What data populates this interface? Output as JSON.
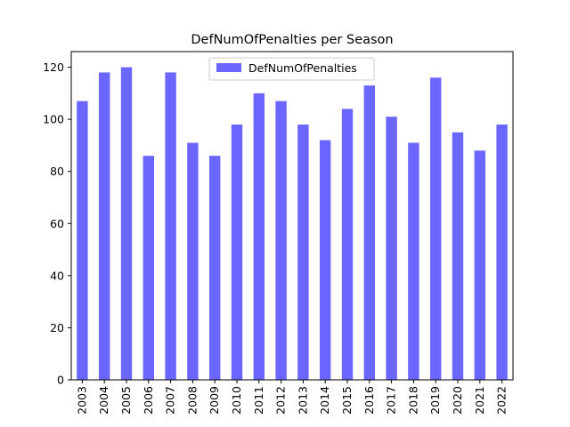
{
  "chart_data": {
    "type": "bar",
    "title": "DefNumOfPenalties per Season",
    "xlabel": "",
    "ylabel": "",
    "categories": [
      "2003",
      "2004",
      "2005",
      "2006",
      "2007",
      "2008",
      "2009",
      "2010",
      "2011",
      "2012",
      "2013",
      "2014",
      "2015",
      "2016",
      "2017",
      "2018",
      "2019",
      "2020",
      "2021",
      "2022"
    ],
    "series": [
      {
        "name": "DefNumOfPenalties",
        "color": "#6a66ff",
        "values": [
          107,
          118,
          120,
          86,
          118,
          91,
          86,
          98,
          110,
          107,
          98,
          92,
          104,
          113,
          101,
          91,
          116,
          95,
          88,
          98
        ]
      }
    ],
    "ylim": [
      0,
      126
    ],
    "yticks": [
      0,
      20,
      40,
      60,
      80,
      100,
      120
    ],
    "legend_position": "top-center",
    "grid": false
  }
}
